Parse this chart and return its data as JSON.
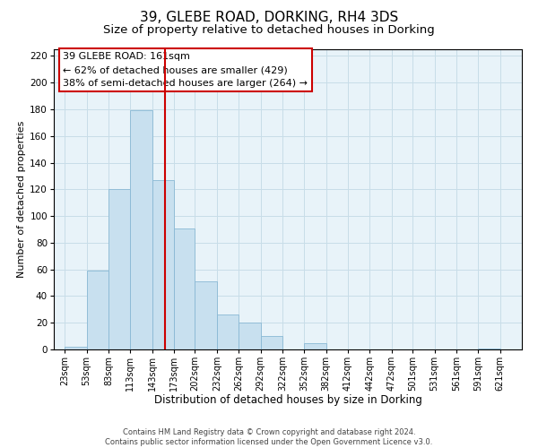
{
  "title": "39, GLEBE ROAD, DORKING, RH4 3DS",
  "subtitle": "Size of property relative to detached houses in Dorking",
  "xlabel": "Distribution of detached houses by size in Dorking",
  "ylabel": "Number of detached properties",
  "bar_left_edges": [
    23,
    53,
    83,
    113,
    143,
    173,
    202,
    232,
    262,
    292,
    322,
    352,
    382,
    412,
    442,
    472,
    501,
    531,
    561,
    591
  ],
  "bar_heights": [
    2,
    59,
    120,
    179,
    127,
    91,
    51,
    26,
    20,
    10,
    0,
    5,
    0,
    0,
    0,
    0,
    0,
    0,
    0,
    1
  ],
  "bar_widths": [
    30,
    30,
    30,
    30,
    30,
    29,
    30,
    30,
    30,
    30,
    30,
    30,
    30,
    30,
    30,
    29,
    30,
    30,
    30,
    30
  ],
  "bar_color": "#c8e0ef",
  "bar_edgecolor": "#89b8d4",
  "vline_x": 161,
  "vline_color": "#cc0000",
  "annotation_lines": [
    "39 GLEBE ROAD: 161sqm",
    "← 62% of detached houses are smaller (429)",
    "38% of semi-detached houses are larger (264) →"
  ],
  "annotation_fontsize": 8,
  "tick_labels": [
    "23sqm",
    "53sqm",
    "83sqm",
    "113sqm",
    "143sqm",
    "173sqm",
    "202sqm",
    "232sqm",
    "262sqm",
    "292sqm",
    "322sqm",
    "352sqm",
    "382sqm",
    "412sqm",
    "442sqm",
    "472sqm",
    "501sqm",
    "531sqm",
    "561sqm",
    "591sqm",
    "621sqm"
  ],
  "tick_positions": [
    23,
    53,
    83,
    113,
    143,
    173,
    202,
    232,
    262,
    292,
    322,
    352,
    382,
    412,
    442,
    472,
    501,
    531,
    561,
    591,
    621
  ],
  "yticks": [
    0,
    20,
    40,
    60,
    80,
    100,
    120,
    140,
    160,
    180,
    200,
    220
  ],
  "ylim": [
    0,
    225
  ],
  "xlim": [
    8,
    651
  ],
  "grid_color": "#c8dde8",
  "bg_color": "#e8f3f9",
  "footer_lines": [
    "Contains HM Land Registry data © Crown copyright and database right 2024.",
    "Contains public sector information licensed under the Open Government Licence v3.0."
  ],
  "title_fontsize": 11,
  "subtitle_fontsize": 9.5,
  "xlabel_fontsize": 8.5,
  "ylabel_fontsize": 8,
  "tick_fontsize": 7,
  "ytick_fontsize": 7.5,
  "footer_fontsize": 6
}
